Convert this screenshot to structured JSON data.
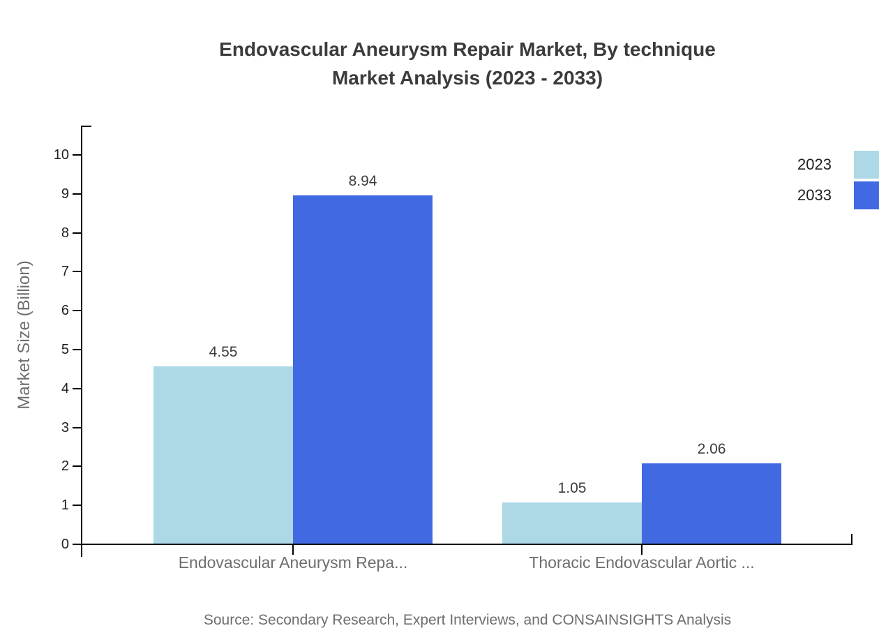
{
  "title": {
    "line1": "Endovascular Aneurysm Repair Market, By technique",
    "line2": "Market Analysis (2023 - 2033)"
  },
  "source": "Source: Secondary Research, Expert Interviews, and CONSAINSIGHTS Analysis",
  "legend": {
    "items": [
      {
        "label": "2023",
        "color": "#ADD8E6"
      },
      {
        "label": "2033",
        "color": "#4169E1"
      }
    ]
  },
  "chart_data": {
    "type": "bar",
    "title": "Endovascular Aneurysm Repair Market, By technique Market Analysis (2023 - 2033)",
    "categories": [
      "Endovascular Aneurysm Repa...",
      "Thoracic Endovascular Aortic ..."
    ],
    "series": [
      {
        "name": "2023",
        "color": "#ADD8E6",
        "values": [
          4.55,
          1.05
        ]
      },
      {
        "name": "2033",
        "color": "#4169E1",
        "values": [
          8.94,
          2.06
        ]
      }
    ],
    "xlabel": "",
    "ylabel": "Market Size (Billion)",
    "ylim": [
      0,
      10
    ],
    "yticks": [
      0,
      1,
      2,
      3,
      4,
      5,
      6,
      7,
      8,
      9,
      10
    ],
    "grid": false,
    "legend_position": "top-right",
    "value_labels": true,
    "value_label_format": "2-decimals"
  }
}
